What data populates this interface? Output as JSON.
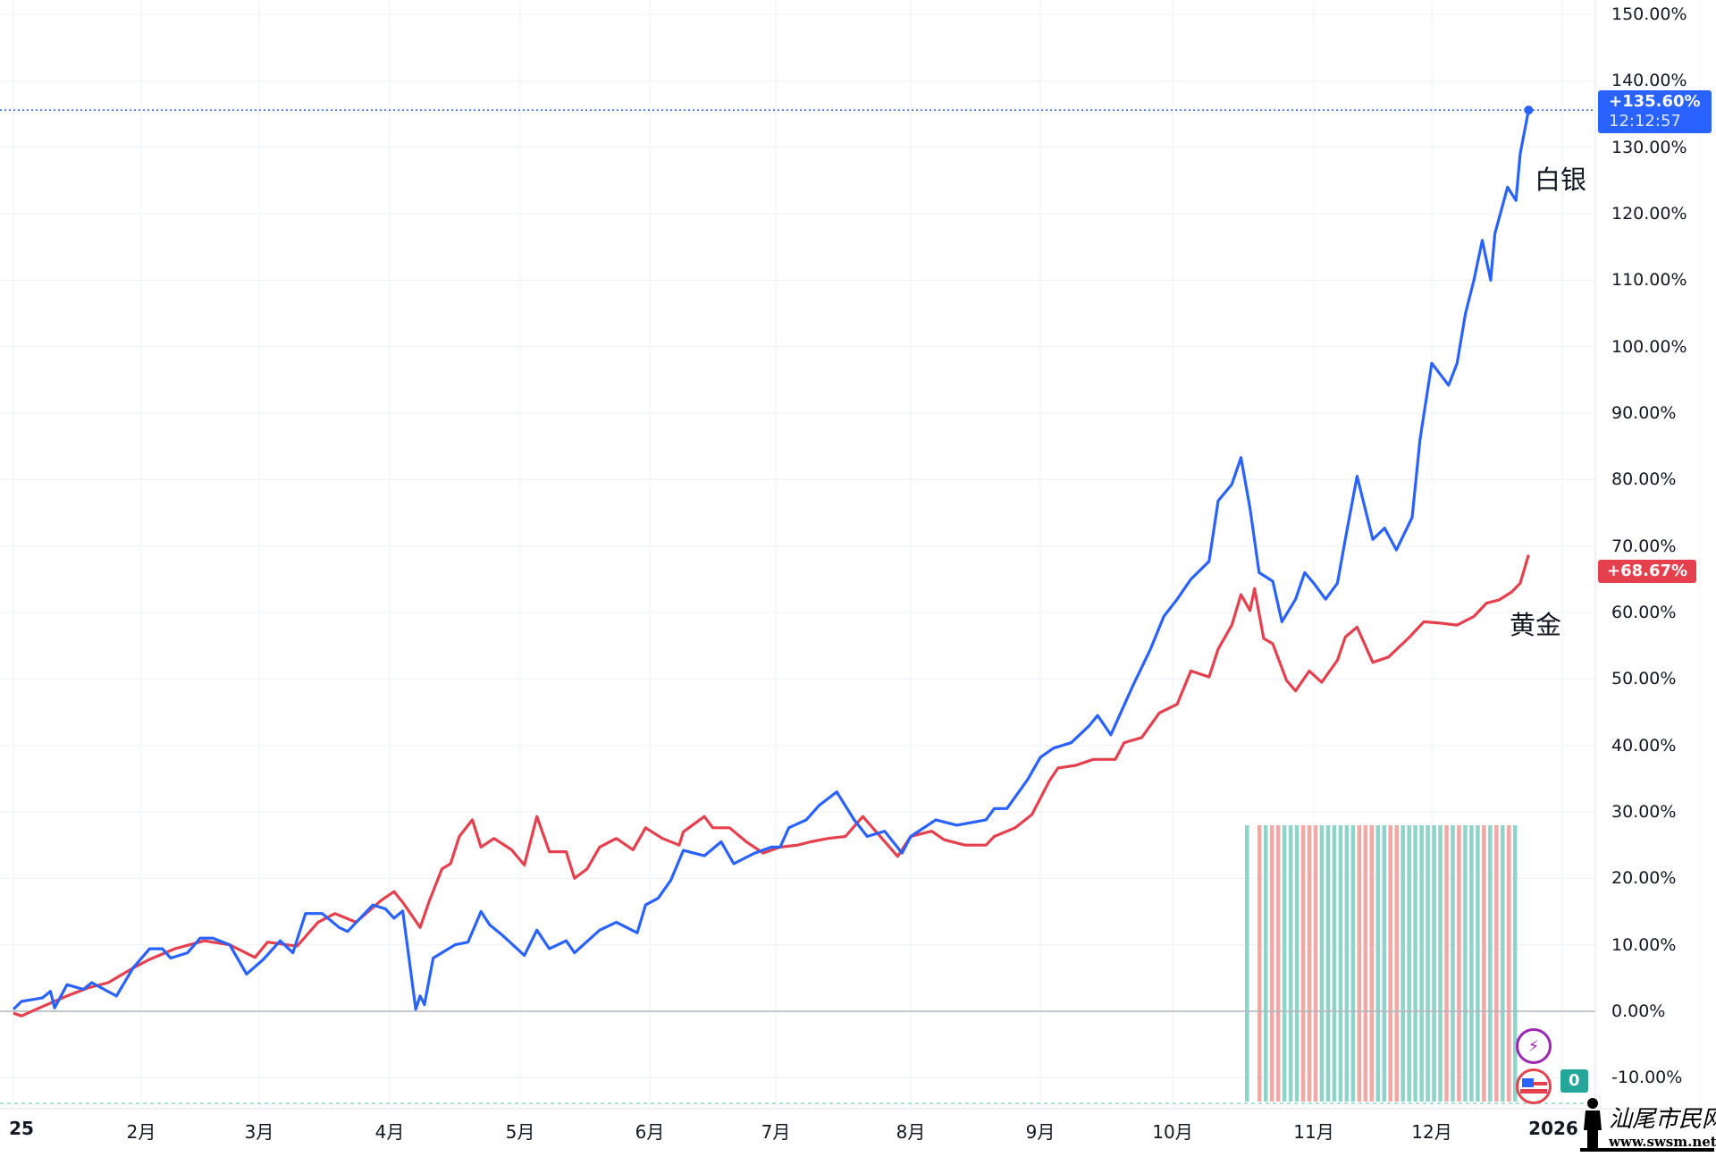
{
  "chart_data": {
    "type": "line",
    "title": "",
    "xlabel": "",
    "ylabel": "",
    "y_axis_position": "right",
    "ylim": [
      -10,
      150
    ],
    "y_ticks": [
      "150.00%",
      "140.00%",
      "130.00%",
      "120.00%",
      "110.00%",
      "100.00%",
      "90.00%",
      "80.00%",
      "70.00%",
      "60.00%",
      "50.00%",
      "40.00%",
      "30.00%",
      "20.00%",
      "10.00%",
      "0.00%",
      "-10.00%"
    ],
    "x_ticks": [
      {
        "date": "2025-01-01",
        "label": "25"
      },
      {
        "date": "2025-02-01",
        "label": "2月"
      },
      {
        "date": "2025-03-01",
        "label": "3月"
      },
      {
        "date": "2025-04-01",
        "label": "4月"
      },
      {
        "date": "2025-05-01",
        "label": "5月"
      },
      {
        "date": "2025-06-01",
        "label": "6月"
      },
      {
        "date": "2025-07-01",
        "label": "7月"
      },
      {
        "date": "2025-08-01",
        "label": "8月"
      },
      {
        "date": "2025-09-01",
        "label": "9月"
      },
      {
        "date": "2025-10-01",
        "label": "10月"
      },
      {
        "date": "2025-11-01",
        "label": "11月"
      },
      {
        "date": "2025-12-01",
        "label": "12月"
      },
      {
        "date": "2026-01-01",
        "label": "2026"
      }
    ],
    "grid": true,
    "series": [
      {
        "name": "白银",
        "color": "#2962ff",
        "last_label": "+135.60%",
        "last_time": "12:12:57",
        "points": [
          [
            "2025-01-01",
            0.3
          ],
          [
            "2025-01-03",
            1.5
          ],
          [
            "2025-01-08",
            2
          ],
          [
            "2025-01-10",
            3
          ],
          [
            "2025-01-11",
            0.5
          ],
          [
            "2025-01-14",
            4
          ],
          [
            "2025-01-18",
            3.3
          ],
          [
            "2025-01-20",
            4.3
          ],
          [
            "2025-01-23",
            3.3
          ],
          [
            "2025-01-26",
            2.3
          ],
          [
            "2025-01-30",
            6.5
          ],
          [
            "2025-02-03",
            9.4
          ],
          [
            "2025-02-06",
            9.4
          ],
          [
            "2025-02-08",
            8
          ],
          [
            "2025-02-12",
            8.8
          ],
          [
            "2025-02-15",
            11
          ],
          [
            "2025-02-18",
            11
          ],
          [
            "2025-02-22",
            10
          ],
          [
            "2025-02-26",
            5.6
          ],
          [
            "2025-03-02",
            7.8
          ],
          [
            "2025-03-06",
            10.6
          ],
          [
            "2025-03-09",
            8.8
          ],
          [
            "2025-03-12",
            14.7
          ],
          [
            "2025-03-16",
            14.7
          ],
          [
            "2025-03-20",
            12.6
          ],
          [
            "2025-03-22",
            12
          ],
          [
            "2025-03-28",
            16
          ],
          [
            "2025-03-31",
            15.4
          ],
          [
            "2025-04-02",
            14
          ],
          [
            "2025-04-04",
            15.1
          ],
          [
            "2025-04-07",
            0.3
          ],
          [
            "2025-04-08",
            2.3
          ],
          [
            "2025-04-09",
            1
          ],
          [
            "2025-04-11",
            8
          ],
          [
            "2025-04-16",
            10
          ],
          [
            "2025-04-19",
            10.4
          ],
          [
            "2025-04-22",
            15
          ],
          [
            "2025-04-24",
            13
          ],
          [
            "2025-04-27",
            11.4
          ],
          [
            "2025-05-02",
            8.4
          ],
          [
            "2025-05-05",
            12.2
          ],
          [
            "2025-05-08",
            9.4
          ],
          [
            "2025-05-12",
            10.6
          ],
          [
            "2025-05-14",
            8.8
          ],
          [
            "2025-05-20",
            12.2
          ],
          [
            "2025-05-24",
            13.4
          ],
          [
            "2025-05-29",
            11.8
          ],
          [
            "2025-05-31",
            16
          ],
          [
            "2025-06-03",
            17
          ],
          [
            "2025-06-06",
            19.7
          ],
          [
            "2025-06-09",
            24.2
          ],
          [
            "2025-06-14",
            23.4
          ],
          [
            "2025-06-18",
            25.5
          ],
          [
            "2025-06-21",
            22.2
          ],
          [
            "2025-06-26",
            23.8
          ],
          [
            "2025-06-30",
            24.7
          ],
          [
            "2025-07-02",
            24.7
          ],
          [
            "2025-07-04",
            27.6
          ],
          [
            "2025-07-08",
            28.8
          ],
          [
            "2025-07-11",
            31
          ],
          [
            "2025-07-15",
            33
          ],
          [
            "2025-07-19",
            28.8
          ],
          [
            "2025-07-22",
            26.3
          ],
          [
            "2025-07-26",
            27.1
          ],
          [
            "2025-07-30",
            23.8
          ],
          [
            "2025-08-01",
            26.3
          ],
          [
            "2025-08-07",
            28.8
          ],
          [
            "2025-08-12",
            28
          ],
          [
            "2025-08-19",
            28.8
          ],
          [
            "2025-08-21",
            30.5
          ],
          [
            "2025-08-24",
            30.5
          ],
          [
            "2025-08-29",
            34.9
          ],
          [
            "2025-09-01",
            38.2
          ],
          [
            "2025-09-04",
            39.6
          ],
          [
            "2025-09-08",
            40.4
          ],
          [
            "2025-09-12",
            42.9
          ],
          [
            "2025-09-14",
            44.5
          ],
          [
            "2025-09-17",
            41.6
          ],
          [
            "2025-09-22",
            49
          ],
          [
            "2025-09-26",
            54.5
          ],
          [
            "2025-09-29",
            59.4
          ],
          [
            "2025-10-02",
            62
          ],
          [
            "2025-10-05",
            65
          ],
          [
            "2025-10-09",
            67.7
          ],
          [
            "2025-10-11",
            76.8
          ],
          [
            "2025-10-14",
            79.3
          ],
          [
            "2025-10-16",
            83.3
          ],
          [
            "2025-10-18",
            75.7
          ],
          [
            "2025-10-20",
            66
          ],
          [
            "2025-10-23",
            64.7
          ],
          [
            "2025-10-25",
            58.6
          ],
          [
            "2025-10-28",
            62
          ],
          [
            "2025-10-30",
            66
          ],
          [
            "2025-11-01",
            64.4
          ],
          [
            "2025-11-04",
            62
          ],
          [
            "2025-11-07",
            64.4
          ],
          [
            "2025-11-09",
            71
          ],
          [
            "2025-11-12",
            80.5
          ],
          [
            "2025-11-16",
            71
          ],
          [
            "2025-11-19",
            72.7
          ],
          [
            "2025-11-22",
            69.4
          ],
          [
            "2025-11-26",
            74.3
          ],
          [
            "2025-11-28",
            86
          ],
          [
            "2025-12-01",
            97.5
          ],
          [
            "2025-12-05",
            94.2
          ],
          [
            "2025-12-07",
            97.5
          ],
          [
            "2025-12-09",
            105
          ],
          [
            "2025-12-11",
            110
          ],
          [
            "2025-12-13",
            116
          ],
          [
            "2025-12-15",
            110
          ],
          [
            "2025-12-16",
            117
          ],
          [
            "2025-12-19",
            124
          ],
          [
            "2025-12-21",
            122
          ],
          [
            "2025-12-22",
            129
          ],
          [
            "2025-12-24",
            135.6
          ]
        ]
      },
      {
        "name": "黄金",
        "color": "#e5404e",
        "last_label": "+68.67%",
        "points": [
          [
            "2025-01-01",
            -0.3
          ],
          [
            "2025-01-03",
            -0.7
          ],
          [
            "2025-01-08",
            0.7
          ],
          [
            "2025-01-14",
            2.3
          ],
          [
            "2025-01-19",
            3.5
          ],
          [
            "2025-01-24",
            4.3
          ],
          [
            "2025-01-30",
            6.5
          ],
          [
            "2025-02-03",
            7.8
          ],
          [
            "2025-02-09",
            9.4
          ],
          [
            "2025-02-16",
            10.6
          ],
          [
            "2025-02-22",
            10
          ],
          [
            "2025-02-28",
            8.1
          ],
          [
            "2025-03-03",
            10.4
          ],
          [
            "2025-03-10",
            9.8
          ],
          [
            "2025-03-15",
            13.4
          ],
          [
            "2025-03-19",
            14.7
          ],
          [
            "2025-03-24",
            13.4
          ],
          [
            "2025-03-30",
            16.7
          ],
          [
            "2025-04-02",
            18
          ],
          [
            "2025-04-04",
            16.4
          ],
          [
            "2025-04-08",
            12.6
          ],
          [
            "2025-04-10",
            16.4
          ],
          [
            "2025-04-13",
            21.4
          ],
          [
            "2025-04-15",
            22.2
          ],
          [
            "2025-04-17",
            26.3
          ],
          [
            "2025-04-20",
            28.8
          ],
          [
            "2025-04-22",
            24.7
          ],
          [
            "2025-04-25",
            26
          ],
          [
            "2025-04-29",
            24.3
          ],
          [
            "2025-05-02",
            22
          ],
          [
            "2025-05-05",
            29.3
          ],
          [
            "2025-05-08",
            24
          ],
          [
            "2025-05-12",
            24
          ],
          [
            "2025-05-14",
            20
          ],
          [
            "2025-05-17",
            21.4
          ],
          [
            "2025-05-20",
            24.7
          ],
          [
            "2025-05-24",
            26
          ],
          [
            "2025-05-28",
            24.3
          ],
          [
            "2025-05-31",
            27.6
          ],
          [
            "2025-06-04",
            26
          ],
          [
            "2025-06-08",
            25
          ],
          [
            "2025-06-09",
            27
          ],
          [
            "2025-06-14",
            29.3
          ],
          [
            "2025-06-16",
            27.6
          ],
          [
            "2025-06-20",
            27.6
          ],
          [
            "2025-06-24",
            25.5
          ],
          [
            "2025-06-28",
            23.8
          ],
          [
            "2025-07-02",
            24.7
          ],
          [
            "2025-07-06",
            25
          ],
          [
            "2025-07-09",
            25.5
          ],
          [
            "2025-07-13",
            26
          ],
          [
            "2025-07-17",
            26.3
          ],
          [
            "2025-07-21",
            29.3
          ],
          [
            "2025-07-25",
            26.3
          ],
          [
            "2025-07-29",
            23.3
          ],
          [
            "2025-08-01",
            26.3
          ],
          [
            "2025-08-06",
            27.1
          ],
          [
            "2025-08-09",
            25.8
          ],
          [
            "2025-08-14",
            25
          ],
          [
            "2025-08-19",
            25
          ],
          [
            "2025-08-21",
            26.3
          ],
          [
            "2025-08-26",
            27.6
          ],
          [
            "2025-08-30",
            29.6
          ],
          [
            "2025-09-03",
            34.6
          ],
          [
            "2025-09-05",
            36.6
          ],
          [
            "2025-09-09",
            37
          ],
          [
            "2025-09-13",
            37.9
          ],
          [
            "2025-09-18",
            37.9
          ],
          [
            "2025-09-20",
            40.4
          ],
          [
            "2025-09-24",
            41.2
          ],
          [
            "2025-09-28",
            44.9
          ],
          [
            "2025-10-02",
            46.2
          ],
          [
            "2025-10-05",
            51.2
          ],
          [
            "2025-10-09",
            50.3
          ],
          [
            "2025-10-11",
            54.5
          ],
          [
            "2025-10-14",
            58.1
          ],
          [
            "2025-10-16",
            62.7
          ],
          [
            "2025-10-18",
            60.3
          ],
          [
            "2025-10-19",
            63.6
          ],
          [
            "2025-10-21",
            56.1
          ],
          [
            "2025-10-23",
            55.3
          ],
          [
            "2025-10-26",
            49.8
          ],
          [
            "2025-10-28",
            48.2
          ],
          [
            "2025-10-31",
            51.2
          ],
          [
            "2025-11-03",
            49.5
          ],
          [
            "2025-11-07",
            52.8
          ],
          [
            "2025-11-09",
            56.3
          ],
          [
            "2025-11-12",
            57.8
          ],
          [
            "2025-11-16",
            52.5
          ],
          [
            "2025-11-20",
            53.3
          ],
          [
            "2025-11-25",
            56.1
          ],
          [
            "2025-11-29",
            58.6
          ],
          [
            "2025-12-03",
            58.4
          ],
          [
            "2025-12-07",
            58.1
          ],
          [
            "2025-12-11",
            59.4
          ],
          [
            "2025-12-14",
            61.4
          ],
          [
            "2025-12-17",
            61.9
          ],
          [
            "2025-12-20",
            63.1
          ],
          [
            "2025-12-22",
            64.4
          ],
          [
            "2025-12-24",
            68.67
          ]
        ]
      }
    ],
    "volume_bars": {
      "colors": {
        "up": "#8fd3c9",
        "down": "#f0a9a4"
      },
      "directions": [
        "u",
        "d",
        "u",
        "d",
        "d",
        "u",
        "u",
        "u",
        "d",
        "d",
        "d",
        "u",
        "u",
        "u",
        "u",
        "u",
        "u",
        "d",
        "d",
        "d",
        "u",
        "u",
        "d",
        "d",
        "u",
        "u",
        "u",
        "u",
        "u",
        "u",
        "u",
        "d",
        "u",
        "d",
        "u",
        "u",
        "u",
        "d",
        "u",
        "d",
        "u",
        "d",
        "u"
      ]
    },
    "volume_badge": "0",
    "markers": [
      {
        "icon": "lightning-icon",
        "color": "#9c27b0"
      },
      {
        "icon": "us-flag-icon",
        "color": "#e5404e"
      }
    ],
    "colors": {
      "grid": "#f0f3fa",
      "zero_line": "#b2b5be"
    }
  },
  "watermark": {
    "text": "汕尾市民网",
    "url_text": "www.swsm.net"
  }
}
